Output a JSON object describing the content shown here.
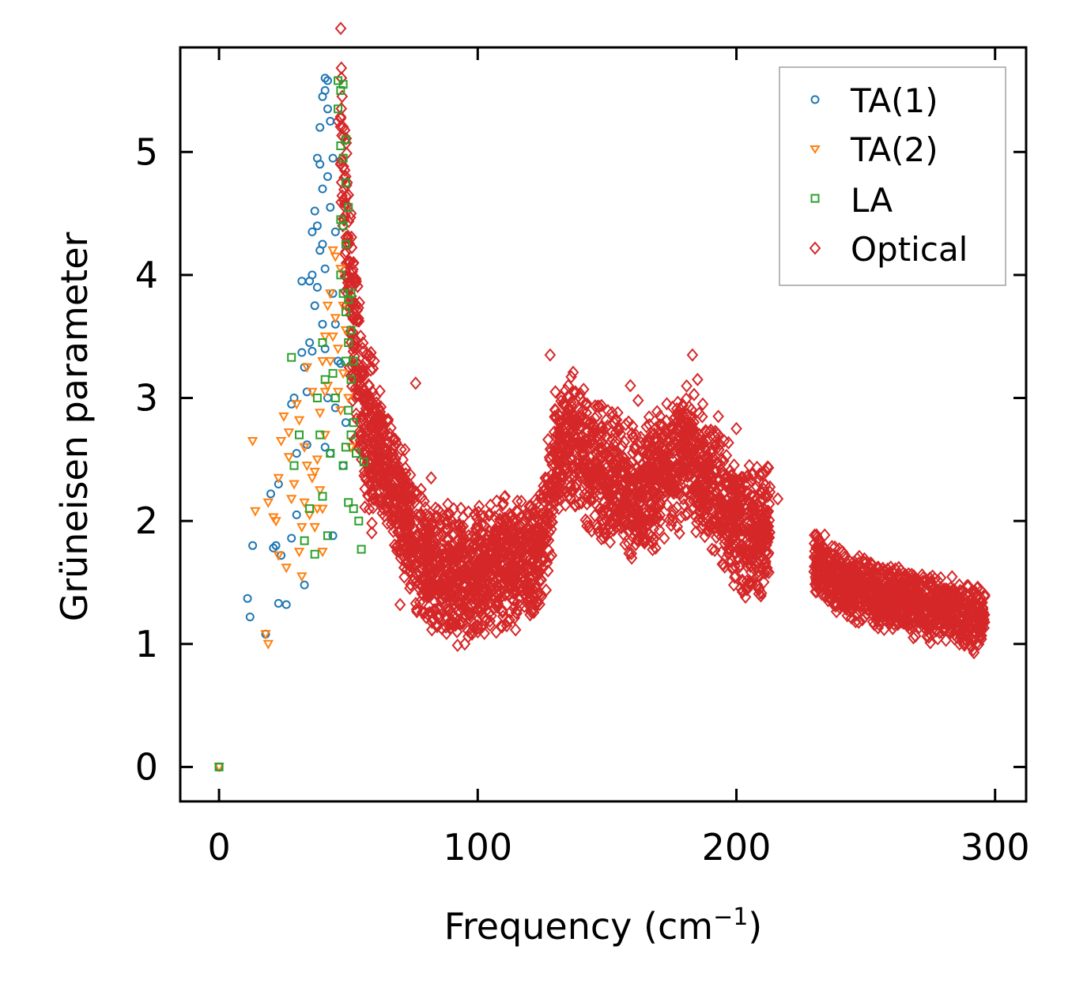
{
  "chart_data": {
    "type": "scatter",
    "xlabel": "Frequency (cm",
    "xlabel_sup": "−1",
    "xlabel_close": ")",
    "ylabel": "Grüneisen parameter",
    "xlim": [
      -15,
      312
    ],
    "ylim": [
      -0.28,
      5.85
    ],
    "xticks": [
      0,
      100,
      200,
      300
    ],
    "yticks": [
      0,
      1,
      2,
      3,
      4,
      5
    ],
    "legend_position": "top-right",
    "grid": false,
    "series": [
      {
        "name": "TA(1)",
        "marker": "circle",
        "color": "#1f77b4",
        "points": [
          [
            0,
            0
          ],
          [
            11,
            1.37
          ],
          [
            12,
            1.22
          ],
          [
            13,
            1.8
          ],
          [
            18,
            1.08
          ],
          [
            20,
            2.22
          ],
          [
            21,
            1.78
          ],
          [
            22,
            1.8
          ],
          [
            23,
            2.3
          ],
          [
            23,
            1.33
          ],
          [
            24,
            1.72
          ],
          [
            26,
            1.32
          ],
          [
            28,
            2.95
          ],
          [
            28,
            1.86
          ],
          [
            29,
            3.0
          ],
          [
            30,
            2.05
          ],
          [
            30,
            2.55
          ],
          [
            32,
            3.37
          ],
          [
            32,
            3.95
          ],
          [
            33,
            3.25
          ],
          [
            33,
            1.48
          ],
          [
            34,
            2.62
          ],
          [
            34,
            3.05
          ],
          [
            35,
            3.45
          ],
          [
            35,
            3.95
          ],
          [
            36,
            3.38
          ],
          [
            36,
            4.0
          ],
          [
            36,
            4.35
          ],
          [
            37,
            4.52
          ],
          [
            37,
            3.75
          ],
          [
            38,
            4.95
          ],
          [
            38,
            4.4
          ],
          [
            38,
            3.9
          ],
          [
            39,
            4.2
          ],
          [
            39,
            5.2
          ],
          [
            39,
            4.9
          ],
          [
            40,
            3.6
          ],
          [
            40,
            4.25
          ],
          [
            40,
            5.45
          ],
          [
            40,
            4.7
          ],
          [
            41,
            5.6
          ],
          [
            41,
            5.5
          ],
          [
            41,
            4.05
          ],
          [
            41,
            3.4
          ],
          [
            41,
            2.6
          ],
          [
            42,
            5.58
          ],
          [
            42,
            5.35
          ],
          [
            42,
            4.8
          ],
          [
            42,
            3.0
          ],
          [
            43,
            5.25
          ],
          [
            43,
            4.55
          ],
          [
            43,
            2.55
          ],
          [
            44,
            4.95
          ],
          [
            44,
            3.85
          ],
          [
            44,
            1.88
          ],
          [
            45,
            4.35
          ],
          [
            45,
            3.6
          ],
          [
            45,
            2.92
          ],
          [
            46,
            3.3
          ],
          [
            47,
            3.28
          ],
          [
            48,
            2.45
          ],
          [
            49,
            2.8
          ]
        ]
      },
      {
        "name": "TA(2)",
        "marker": "triangle-down",
        "color": "#ff7f0e",
        "points": [
          [
            0,
            0
          ],
          [
            13,
            2.65
          ],
          [
            14,
            2.08
          ],
          [
            18,
            1.08
          ],
          [
            19,
            1.0
          ],
          [
            19,
            2.15
          ],
          [
            21,
            2.03
          ],
          [
            22,
            2.0
          ],
          [
            23,
            2.35
          ],
          [
            23,
            1.72
          ],
          [
            24,
            2.65
          ],
          [
            25,
            2.85
          ],
          [
            26,
            1.62
          ],
          [
            27,
            2.72
          ],
          [
            27,
            2.52
          ],
          [
            28,
            2.18
          ],
          [
            29,
            2.3
          ],
          [
            30,
            2.95
          ],
          [
            31,
            2.82
          ],
          [
            31,
            1.75
          ],
          [
            32,
            1.55
          ],
          [
            32,
            1.95
          ],
          [
            33,
            2.6
          ],
          [
            33,
            2.15
          ],
          [
            34,
            3.25
          ],
          [
            34,
            2.45
          ],
          [
            35,
            2.05
          ],
          [
            36,
            3.05
          ],
          [
            36,
            2.35
          ],
          [
            37,
            2.4
          ],
          [
            37,
            1.95
          ],
          [
            38,
            2.1
          ],
          [
            38,
            2.5
          ],
          [
            39,
            2.88
          ],
          [
            39,
            2.25
          ],
          [
            40,
            3.3
          ],
          [
            40,
            2.1
          ],
          [
            40,
            1.75
          ],
          [
            41,
            3.5
          ],
          [
            41,
            2.7
          ],
          [
            41,
            3.05
          ],
          [
            42,
            3.75
          ],
          [
            42,
            3.1
          ],
          [
            43,
            3.85
          ],
          [
            43,
            3.3
          ],
          [
            44,
            4.2
          ],
          [
            44,
            3.5
          ],
          [
            45,
            4.15
          ],
          [
            45,
            3.65
          ],
          [
            46,
            3.4
          ],
          [
            46,
            3.05
          ],
          [
            47,
            4.05
          ],
          [
            47,
            2.9
          ],
          [
            48,
            3.75
          ],
          [
            48,
            3.2
          ],
          [
            49,
            3.55
          ],
          [
            50,
            3.0
          ],
          [
            51,
            2.6
          ]
        ]
      },
      {
        "name": "LA",
        "marker": "square",
        "color": "#2ca02c",
        "points": [
          [
            0,
            0
          ],
          [
            28,
            3.33
          ],
          [
            29,
            2.45
          ],
          [
            31,
            2.7
          ],
          [
            33,
            1.84
          ],
          [
            35,
            2.1
          ],
          [
            37,
            1.73
          ],
          [
            38,
            3.0
          ],
          [
            39,
            2.7
          ],
          [
            40,
            3.45
          ],
          [
            40,
            2.2
          ],
          [
            41,
            3.15
          ],
          [
            42,
            1.88
          ],
          [
            43,
            2.55
          ],
          [
            44,
            3.2
          ],
          [
            45,
            3.0
          ],
          [
            46,
            5.58
          ],
          [
            46,
            5.35
          ],
          [
            47,
            5.5
          ],
          [
            47,
            5.05
          ],
          [
            47,
            4.45
          ],
          [
            47,
            4.0
          ],
          [
            48,
            5.55
          ],
          [
            48,
            4.95
          ],
          [
            48,
            4.4
          ],
          [
            48,
            3.85
          ],
          [
            48,
            2.45
          ],
          [
            49,
            5.1
          ],
          [
            49,
            4.75
          ],
          [
            49,
            4.25
          ],
          [
            49,
            3.7
          ],
          [
            49,
            3.3
          ],
          [
            49,
            2.6
          ],
          [
            50,
            4.55
          ],
          [
            50,
            3.8
          ],
          [
            50,
            3.45
          ],
          [
            50,
            2.9
          ],
          [
            50,
            2.15
          ],
          [
            51,
            3.85
          ],
          [
            51,
            3.55
          ],
          [
            51,
            3.15
          ],
          [
            51,
            2.7
          ],
          [
            52,
            3.3
          ],
          [
            52,
            2.8
          ],
          [
            52,
            2.1
          ],
          [
            53,
            2.55
          ],
          [
            54,
            2.0
          ],
          [
            55,
            1.77
          ],
          [
            56,
            2.48
          ]
        ]
      },
      {
        "name": "Optical",
        "marker": "diamond",
        "color": "#d62728",
        "bands": [
          [
            [
              47,
              5.25
            ],
            [
              48,
              4.8
            ],
            [
              49,
              4.5
            ],
            [
              50,
              4.1
            ],
            [
              51,
              3.8
            ],
            [
              52,
              3.5
            ],
            [
              54,
              3.1
            ],
            [
              56,
              2.9
            ],
            [
              58,
              2.7
            ],
            [
              60,
              2.6
            ],
            [
              62,
              2.55
            ],
            [
              65,
              2.4
            ],
            [
              68,
              2.2
            ],
            [
              72,
              2.0
            ],
            [
              76,
              1.82
            ],
            [
              80,
              1.72
            ],
            [
              85,
              1.62
            ],
            [
              90,
              1.55
            ],
            [
              95,
              1.55
            ],
            [
              100,
              1.58
            ],
            [
              105,
              1.62
            ],
            [
              110,
              1.66
            ],
            [
              115,
              1.7
            ],
            [
              120,
              1.72
            ],
            [
              124,
              1.75
            ],
            [
              127,
              2.05
            ],
            [
              130,
              2.45
            ],
            [
              133,
              2.6
            ],
            [
              137,
              2.65
            ],
            [
              142,
              2.55
            ],
            [
              148,
              2.42
            ],
            [
              154,
              2.32
            ],
            [
              160,
              2.22
            ],
            [
              165,
              2.25
            ],
            [
              170,
              2.38
            ],
            [
              175,
              2.45
            ],
            [
              180,
              2.55
            ],
            [
              185,
              2.45
            ],
            [
              190,
              2.35
            ],
            [
              195,
              2.15
            ],
            [
              200,
              2.0
            ],
            [
              205,
              1.9
            ],
            [
              210,
              1.88
            ],
            [
              213,
              1.95
            ]
          ],
          [
            [
              230,
              1.65
            ],
            [
              235,
              1.58
            ],
            [
              240,
              1.5
            ],
            [
              245,
              1.45
            ],
            [
              250,
              1.42
            ],
            [
              255,
              1.38
            ],
            [
              260,
              1.37
            ],
            [
              265,
              1.38
            ],
            [
              270,
              1.32
            ],
            [
              275,
              1.3
            ],
            [
              280,
              1.28
            ],
            [
              285,
              1.25
            ],
            [
              290,
              1.22
            ],
            [
              296,
              1.2
            ]
          ]
        ],
        "bands_spread": [
          [
            0.55,
            0.6
          ],
          [
            0.28
          ]
        ],
        "outliers": [
          [
            46,
            5.25
          ],
          [
            49,
            4.8
          ],
          [
            50,
            4.65
          ],
          [
            51,
            4.5
          ],
          [
            52,
            4.1
          ],
          [
            53,
            3.95
          ],
          [
            58,
            3.35
          ],
          [
            60,
            3.3
          ],
          [
            70,
            1.32
          ],
          [
            76,
            3.12
          ],
          [
            82,
            2.35
          ],
          [
            88,
            1.22
          ],
          [
            92,
            1.1
          ],
          [
            95,
            1.0
          ],
          [
            100,
            1.15
          ],
          [
            108,
            1.95
          ],
          [
            118,
            1.4
          ],
          [
            128,
            3.35
          ],
          [
            130,
            3.05
          ],
          [
            135,
            3.1
          ],
          [
            159,
            3.1
          ],
          [
            162,
            2.98
          ],
          [
            168,
            1.85
          ],
          [
            178,
            1.9
          ],
          [
            183,
            3.35
          ],
          [
            185,
            3.15
          ],
          [
            187,
            2.95
          ],
          [
            193,
            2.85
          ],
          [
            200,
            2.75
          ],
          [
            205,
            2.45
          ],
          [
            216,
            2.18
          ],
          [
            199,
            1.48
          ]
        ]
      }
    ]
  }
}
